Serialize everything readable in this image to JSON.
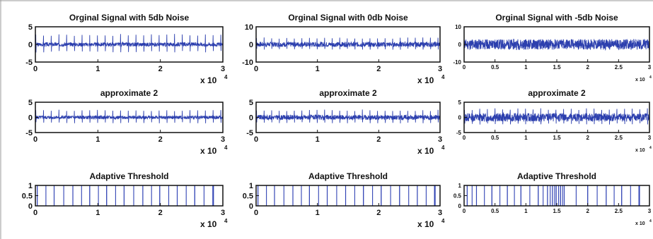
{
  "chart_data": [
    {
      "type": "line",
      "title": "Orginal Signal with 5db Noise",
      "ylim": [
        -5,
        5
      ],
      "yticks": [
        "5",
        "0",
        "-5"
      ],
      "xlim": [
        0,
        3
      ],
      "xticks": [
        "0",
        "1",
        "2",
        "3"
      ],
      "x_multiplier": "x 10",
      "x_exponent": "4",
      "color": "#2c3fae",
      "signal": {
        "noise": 0.55,
        "spike": 3.0,
        "spike_neg": -2.3,
        "spikes": 24,
        "seed": 3
      }
    },
    {
      "type": "line",
      "title": "Orginal Signal with 0db Noise",
      "ylim": [
        -10,
        10
      ],
      "yticks": [
        "10",
        "0",
        "-10"
      ],
      "xlim": [
        0,
        3
      ],
      "xticks": [
        "0",
        "1",
        "2",
        "3"
      ],
      "x_multiplier": "x 10",
      "x_exponent": "4",
      "color": "#2c3fae",
      "signal": {
        "noise": 1.4,
        "spike": 4.0,
        "spike_neg": -3.0,
        "spikes": 24,
        "seed": 7
      }
    },
    {
      "type": "line",
      "title": "Orginal Signal with -5db Noise",
      "ylim": [
        -10,
        10
      ],
      "yticks": [
        "10",
        "0",
        "-10"
      ],
      "xlim": [
        0,
        3
      ],
      "xticks": [
        "0",
        "0.5",
        "1",
        "1.5",
        "2",
        "2.5",
        "3"
      ],
      "x_multiplier": "x 10",
      "x_exponent": "4",
      "color": "#2c3fae",
      "signal": {
        "noise": 3.0,
        "spike": 3.0,
        "spike_neg": -2.5,
        "spikes": 24,
        "seed": 11
      }
    },
    {
      "type": "line",
      "title": "approximate 2",
      "ylim": [
        -5,
        5
      ],
      "yticks": [
        "5",
        "0",
        "-5"
      ],
      "xlim": [
        0,
        3
      ],
      "xticks": [
        "0",
        "1",
        "2",
        "3"
      ],
      "x_multiplier": "x 10",
      "x_exponent": "4",
      "color": "#2c3fae",
      "signal": {
        "noise": 0.55,
        "spike": 2.6,
        "spike_neg": -2.0,
        "spikes": 24,
        "seed": 5
      }
    },
    {
      "type": "line",
      "title": "approximate 2",
      "ylim": [
        -5,
        5
      ],
      "yticks": [
        "5",
        "0",
        "-5"
      ],
      "xlim": [
        0,
        3
      ],
      "xticks": [
        "0",
        "1",
        "2",
        "3"
      ],
      "x_multiplier": "x 10",
      "x_exponent": "4",
      "color": "#2c3fae",
      "signal": {
        "noise": 0.8,
        "spike": 2.6,
        "spike_neg": -2.0,
        "spikes": 24,
        "seed": 9
      }
    },
    {
      "type": "line",
      "title": "approximate 2",
      "ylim": [
        -5,
        5
      ],
      "yticks": [
        "5",
        "0",
        "-5"
      ],
      "xlim": [
        0,
        3
      ],
      "xticks": [
        "0",
        "0.5",
        "1",
        "1.5",
        "2",
        "2.5",
        "3"
      ],
      "x_multiplier": "x 10",
      "x_exponent": "4",
      "color": "#2c3fae",
      "signal": {
        "noise": 1.4,
        "spike": 3.0,
        "spike_neg": -2.4,
        "spikes": 24,
        "seed": 13
      }
    },
    {
      "type": "bar",
      "title": "Adaptive Threshold",
      "ylim": [
        0,
        1
      ],
      "yticks": [
        "1",
        "0.5",
        "0"
      ],
      "xlim": [
        0,
        3
      ],
      "xticks": [
        "0",
        "1",
        "2",
        "3"
      ],
      "x_multiplier": "x 10",
      "x_exponent": "4",
      "color": "#3345b5",
      "pulses": [
        0.03,
        0.3,
        0.6,
        0.87,
        1.14,
        1.42,
        1.72,
        1.99,
        2.27,
        2.55,
        2.84
      ]
    },
    {
      "type": "bar",
      "title": "Adaptive Threshold",
      "ylim": [
        0,
        1
      ],
      "yticks": [
        "1",
        "0.5",
        "0"
      ],
      "xlim": [
        0,
        3
      ],
      "xticks": [
        "0",
        "1",
        "2",
        "3"
      ],
      "x_multiplier": "x 10",
      "x_exponent": "4",
      "color": "#3345b5",
      "pulses": [
        0.03,
        0.3,
        0.6,
        0.87,
        1.16,
        1.46,
        1.75,
        2.04,
        2.34,
        2.63,
        2.91
      ]
    },
    {
      "type": "bar",
      "title": "Adaptive Threshold",
      "ylim": [
        0,
        1
      ],
      "yticks": [
        "1",
        "0.5",
        "0"
      ],
      "xlim": [
        0,
        3
      ],
      "xticks": [
        "0",
        "0.5",
        "1",
        "1.5",
        "2",
        "2.5",
        "3"
      ],
      "x_multiplier": "x 10",
      "x_exponent": "4",
      "color": "#3345b5",
      "pulses": [
        0.05,
        0.2,
        0.45,
        0.7,
        0.92,
        1.2,
        1.35,
        1.43,
        1.49,
        1.56,
        1.62,
        2.0,
        2.3,
        2.55,
        2.83
      ]
    }
  ]
}
